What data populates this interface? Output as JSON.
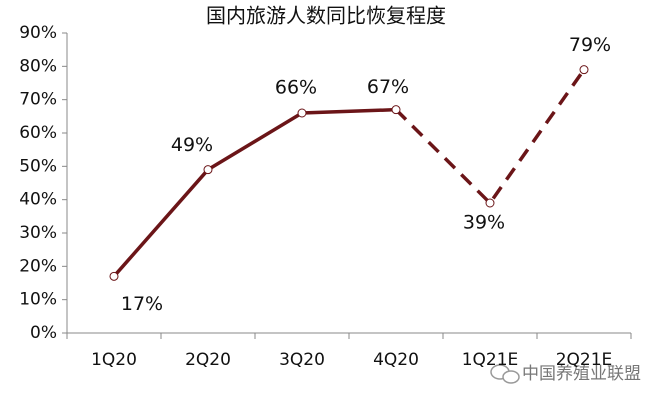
{
  "chart_data": {
    "type": "line",
    "title": "国内旅游人数同比恢复程度",
    "categories": [
      "1Q20",
      "2Q20",
      "3Q20",
      "4Q20",
      "1Q21E",
      "2Q21E"
    ],
    "series": [
      {
        "color": "#6b1518",
        "values": [
          17,
          49,
          66,
          67,
          39,
          79
        ],
        "value_labels": [
          "17%",
          "49%",
          "66%",
          "67%",
          "39%",
          "79%"
        ],
        "dashed_from_index": 3
      }
    ],
    "ylim": [
      0,
      90
    ],
    "yticks": [
      {
        "value": 0,
        "label": "0%"
      },
      {
        "value": 10,
        "label": "10%"
      },
      {
        "value": 20,
        "label": "20%"
      },
      {
        "value": 30,
        "label": "30%"
      },
      {
        "value": 40,
        "label": "40%"
      },
      {
        "value": 50,
        "label": "50%"
      },
      {
        "value": 60,
        "label": "60%"
      },
      {
        "value": 70,
        "label": "70%"
      },
      {
        "value": 80,
        "label": "80%"
      },
      {
        "value": 90,
        "label": "90%"
      }
    ],
    "watermark": "中国养殖业联盟"
  }
}
